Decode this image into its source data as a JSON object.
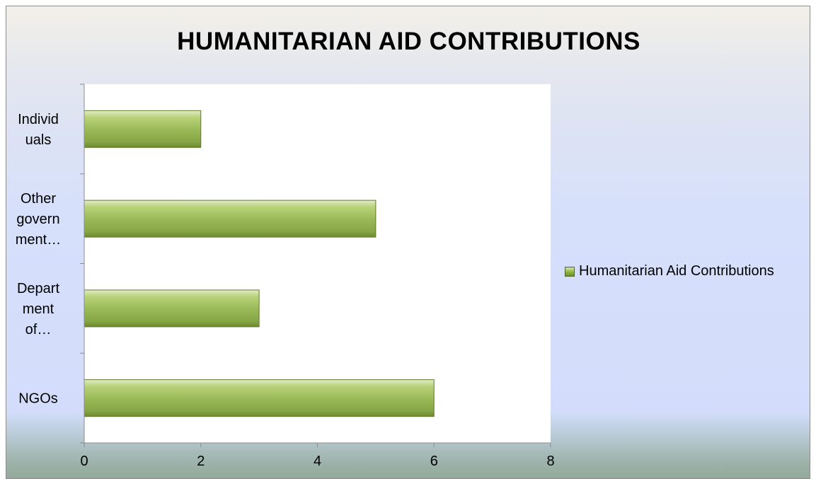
{
  "chart_data": {
    "type": "bar",
    "orientation": "horizontal",
    "title": "HUMANITARIAN AID CONTRIBUTIONS",
    "categories": [
      [
        "NGOs"
      ],
      [
        "Depart",
        "ment",
        "of…"
      ],
      [
        "Other",
        "govern",
        "ment…"
      ],
      [
        "Individ",
        "uals"
      ]
    ],
    "series": [
      {
        "name": "Humanitarian Aid Contributions",
        "values": [
          6,
          3,
          5,
          2
        ]
      }
    ],
    "xlim": [
      0,
      8
    ],
    "x_ticks": [
      "0",
      "2",
      "4",
      "6",
      "8"
    ],
    "grid": false,
    "legend_position": "right",
    "bar_color": "#9bbb59"
  }
}
